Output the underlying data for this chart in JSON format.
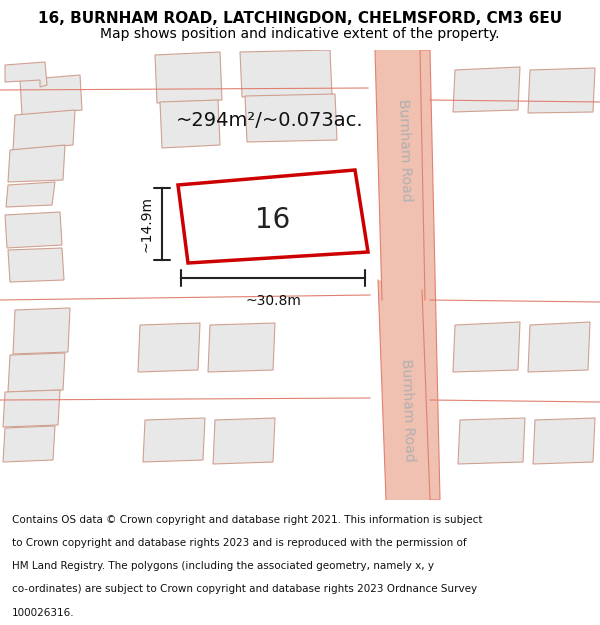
{
  "title_line1": "16, BURNHAM ROAD, LATCHINGDON, CHELMSFORD, CM3 6EU",
  "title_line2": "Map shows position and indicative extent of the property.",
  "footer_text": "Contains OS data © Crown copyright and database right 2021. This information is subject to Crown copyright and database rights 2023 and is reproduced with the permission of HM Land Registry. The polygons (including the associated geometry, namely x, y co-ordinates) are subject to Crown copyright and database rights 2023 Ordnance Survey 100026316.",
  "area_label": "~294m²/~0.073ac.",
  "width_label": "~30.8m",
  "height_label": "~14.9m",
  "plot_number": "16",
  "bg_color": "#f5f5f5",
  "map_bg": "#ffffff",
  "road_color": "#f0c0b0",
  "road_line_color": "#e08070",
  "building_fill": "#e8e8e8",
  "building_line": "#d0a090",
  "highlight_fill": "#ffffff",
  "highlight_line": "#cc0000",
  "road_label_color": "#b0b0b0",
  "road_label1": "Burnham Road",
  "road_label2": "Burnham Road",
  "title_fontsize": 11,
  "subtitle_fontsize": 10,
  "footer_fontsize": 7.5
}
